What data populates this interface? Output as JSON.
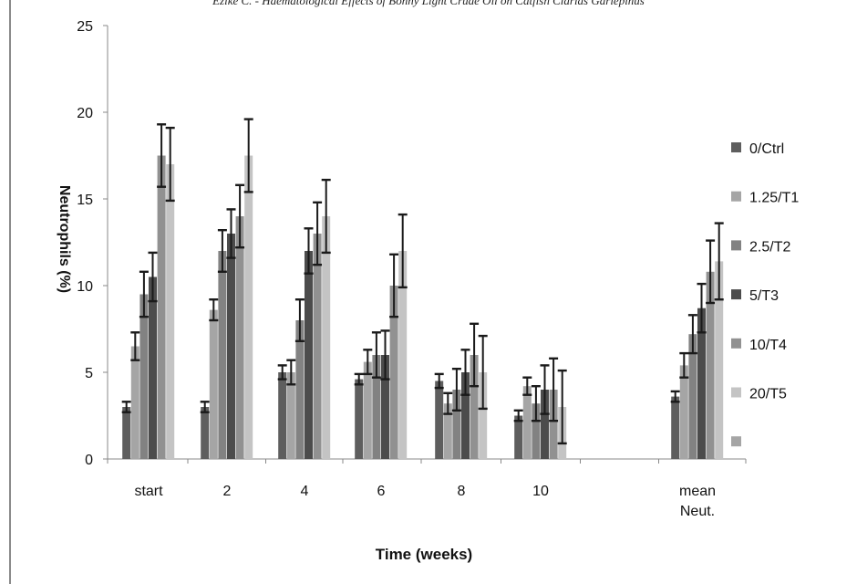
{
  "header": {
    "text": "Ezike C. - Haematological Effects of Bonny Light Crude Oil on Catfish Clarias Gariepinus"
  },
  "chart_data": {
    "type": "bar",
    "title": "",
    "xlabel": "Time (weeks)",
    "ylabel": "Neutrophils (%)",
    "ylim": [
      0,
      25
    ],
    "yticks": [
      0,
      5,
      10,
      15,
      20,
      25
    ],
    "categories": [
      "start",
      "2",
      "4",
      "6",
      "8",
      "10",
      "",
      "mean Neut."
    ],
    "legend_position": "right",
    "grid": false,
    "series": [
      {
        "name": "0/Ctrl",
        "color": "#5e5e5e",
        "values": [
          3.0,
          3.0,
          5.0,
          4.6,
          4.5,
          2.5,
          null,
          3.6
        ],
        "errors": [
          0.3,
          0.3,
          0.4,
          0.3,
          0.4,
          0.3,
          null,
          0.3
        ]
      },
      {
        "name": "1.25/T1",
        "color": "#a5a5a5",
        "values": [
          6.5,
          8.6,
          5.0,
          5.6,
          3.2,
          4.2,
          null,
          5.4
        ],
        "errors": [
          0.8,
          0.6,
          0.7,
          0.7,
          0.6,
          0.5,
          null,
          0.7
        ]
      },
      {
        "name": "2.5/T2",
        "color": "#828282",
        "values": [
          9.5,
          12.0,
          8.0,
          6.0,
          4.0,
          3.2,
          null,
          7.2
        ],
        "errors": [
          1.3,
          1.2,
          1.2,
          1.3,
          1.2,
          1.0,
          null,
          1.1
        ]
      },
      {
        "name": "5/T3",
        "color": "#4c4c4c",
        "values": [
          10.5,
          13.0,
          12.0,
          6.0,
          5.0,
          4.0,
          null,
          8.7
        ],
        "errors": [
          1.4,
          1.4,
          1.3,
          1.4,
          1.3,
          1.4,
          null,
          1.4
        ]
      },
      {
        "name": "10/T4",
        "color": "#919191",
        "values": [
          17.5,
          14.0,
          13.0,
          10.0,
          6.0,
          4.0,
          null,
          10.8
        ],
        "errors": [
          1.8,
          1.8,
          1.8,
          1.8,
          1.8,
          1.8,
          null,
          1.8
        ]
      },
      {
        "name": "20/T5",
        "color": "#c4c4c4",
        "values": [
          17.0,
          17.5,
          14.0,
          12.0,
          5.0,
          3.0,
          null,
          11.4
        ],
        "errors": [
          2.1,
          2.1,
          2.1,
          2.1,
          2.1,
          2.1,
          null,
          2.2
        ]
      },
      {
        "name": "",
        "color": "#a5a5a5",
        "values": [
          null,
          null,
          null,
          null,
          null,
          null,
          null,
          null
        ],
        "errors": []
      }
    ]
  }
}
